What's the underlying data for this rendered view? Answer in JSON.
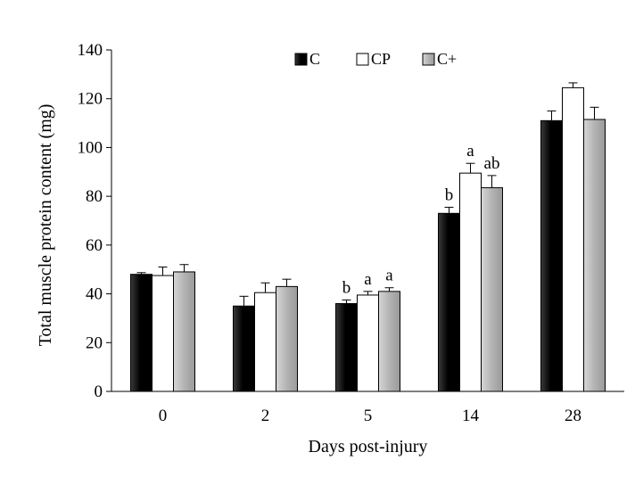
{
  "chart_data": {
    "type": "bar",
    "title": "",
    "xlabel": "Days post-injury",
    "ylabel": "Total muscle protein content (mg)",
    "categories": [
      "0",
      "2",
      "5",
      "14",
      "28"
    ],
    "ylim": [
      0,
      140
    ],
    "yticks": [
      "0",
      "20",
      "40",
      "60",
      "80",
      "100",
      "120",
      "140"
    ],
    "grid": false,
    "legend_position": "top",
    "series": [
      {
        "name": "C",
        "color": "#000000",
        "values": [
          48,
          35,
          36,
          73,
          111
        ],
        "errors": [
          0.7,
          4,
          1.5,
          2.5,
          4
        ],
        "annotations": [
          "",
          "",
          "b",
          "b",
          ""
        ]
      },
      {
        "name": "CP",
        "color": "#ffffff",
        "values": [
          47.5,
          40.5,
          39.5,
          89.5,
          124.5
        ],
        "errors": [
          3.5,
          4,
          1.5,
          4,
          2
        ],
        "annotations": [
          "",
          "",
          "a",
          "a",
          ""
        ]
      },
      {
        "name": "C+",
        "color": "#b3b3b3",
        "values": [
          49,
          43,
          41,
          83.5,
          111.5
        ],
        "errors": [
          3,
          3,
          1.5,
          5,
          5
        ],
        "annotations": [
          "",
          "",
          "a",
          "ab",
          ""
        ]
      }
    ]
  }
}
